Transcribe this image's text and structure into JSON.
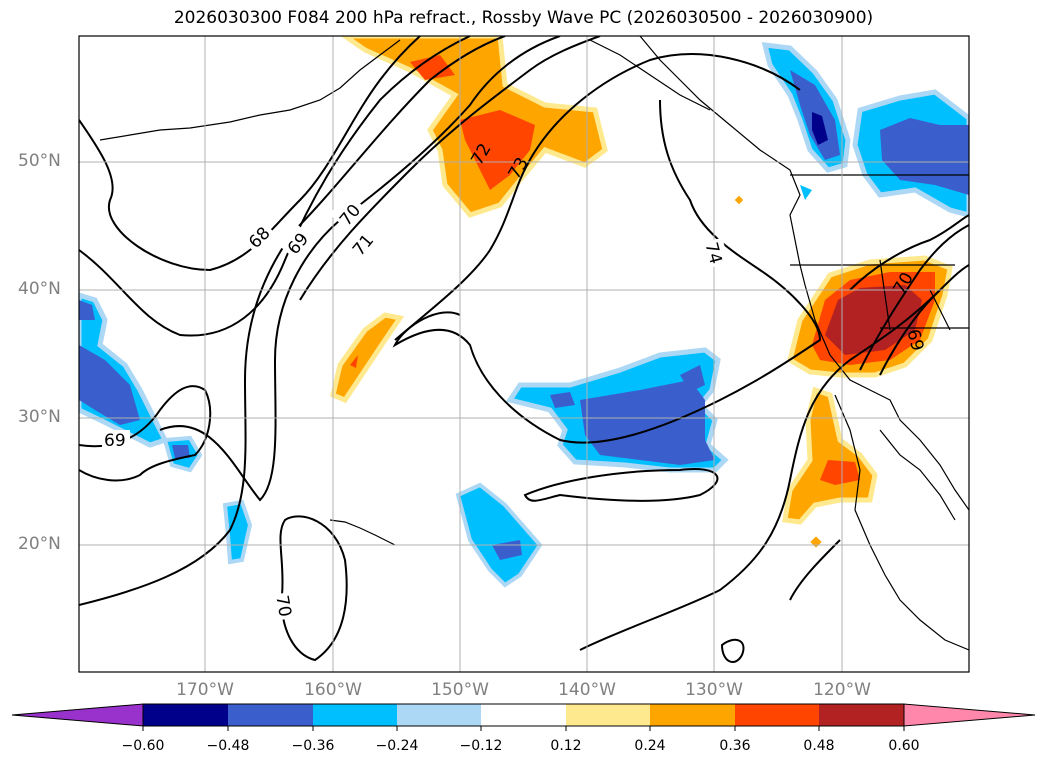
{
  "title": "2026030300 F084 200 hPa refract., Rossby Wave PC (2026030500 - 2026030900)",
  "map": {
    "lat_labels": [
      "50°N",
      "40°N",
      "30°N",
      "20°N"
    ],
    "lon_labels": [
      "170°W",
      "160°W",
      "150°W",
      "140°W",
      "130°W",
      "120°W"
    ],
    "contour_labels": [
      "68",
      "69",
      "70",
      "71",
      "72",
      "73",
      "74",
      "69",
      "70",
      "70",
      "69"
    ]
  },
  "colorbar": {
    "tick_labels": [
      "−0.60",
      "−0.48",
      "−0.36",
      "−0.24",
      "−0.12",
      "0.12",
      "0.24",
      "0.36",
      "0.48",
      "0.60"
    ],
    "colors": [
      "#9932cc",
      "#00008b",
      "#3a5fcd",
      "#00bfff",
      "#add8f5",
      "#ffffff",
      "#ffe98f",
      "#ffa500",
      "#ff4500",
      "#b22222",
      "#ff87ab"
    ]
  }
}
